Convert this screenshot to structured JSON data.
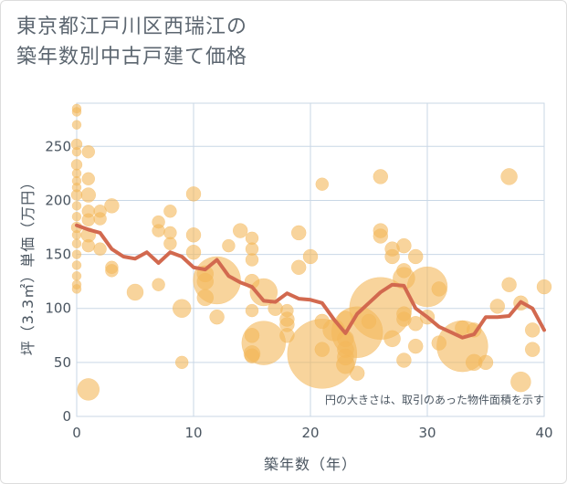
{
  "title_line1": "東京都江戸川区西瑞江の",
  "title_line2": "築年数別中古戸建て価格",
  "chart_data": {
    "type": "scatter",
    "xlabel": "築年数（年）",
    "ylabel": "坪（3.3㎡）単価（万円）",
    "xlim": [
      0,
      40
    ],
    "ylim": [
      0,
      290
    ],
    "xticks": [
      0,
      10,
      20,
      30,
      40
    ],
    "yticks": [
      0,
      50,
      100,
      150,
      200,
      250
    ],
    "grid": true,
    "note": "円の大きさは、取引のあった物件面積を示す",
    "bubble_color": "#f3b85a",
    "line_color": "#d2694f",
    "points": [
      {
        "x": 0,
        "y": 285,
        "s": 5
      },
      {
        "x": 0,
        "y": 282,
        "s": 5
      },
      {
        "x": 0,
        "y": 270,
        "s": 5
      },
      {
        "x": 0,
        "y": 252,
        "s": 6
      },
      {
        "x": 0,
        "y": 245,
        "s": 5
      },
      {
        "x": 0,
        "y": 233,
        "s": 6
      },
      {
        "x": 0,
        "y": 225,
        "s": 5
      },
      {
        "x": 0,
        "y": 218,
        "s": 5
      },
      {
        "x": 0,
        "y": 212,
        "s": 5
      },
      {
        "x": 0,
        "y": 205,
        "s": 6
      },
      {
        "x": 0,
        "y": 195,
        "s": 5
      },
      {
        "x": 0,
        "y": 185,
        "s": 5
      },
      {
        "x": 0,
        "y": 175,
        "s": 6
      },
      {
        "x": 0,
        "y": 168,
        "s": 5
      },
      {
        "x": 0,
        "y": 160,
        "s": 5
      },
      {
        "x": 0,
        "y": 150,
        "s": 5
      },
      {
        "x": 0,
        "y": 140,
        "s": 5
      },
      {
        "x": 0,
        "y": 130,
        "s": 5
      },
      {
        "x": 0,
        "y": 122,
        "s": 5
      },
      {
        "x": 0,
        "y": 118,
        "s": 5
      },
      {
        "x": 1,
        "y": 245,
        "s": 7
      },
      {
        "x": 1,
        "y": 220,
        "s": 7
      },
      {
        "x": 1,
        "y": 205,
        "s": 8
      },
      {
        "x": 1,
        "y": 190,
        "s": 7
      },
      {
        "x": 1,
        "y": 182,
        "s": 7
      },
      {
        "x": 1,
        "y": 168,
        "s": 8
      },
      {
        "x": 1,
        "y": 158,
        "s": 7
      },
      {
        "x": 1,
        "y": 25,
        "s": 12
      },
      {
        "x": 2,
        "y": 190,
        "s": 7
      },
      {
        "x": 2,
        "y": 183,
        "s": 7
      },
      {
        "x": 2,
        "y": 155,
        "s": 7
      },
      {
        "x": 3,
        "y": 195,
        "s": 8
      },
      {
        "x": 3,
        "y": 138,
        "s": 7
      },
      {
        "x": 3,
        "y": 135,
        "s": 7
      },
      {
        "x": 5,
        "y": 115,
        "s": 9
      },
      {
        "x": 7,
        "y": 180,
        "s": 7
      },
      {
        "x": 7,
        "y": 172,
        "s": 7
      },
      {
        "x": 7,
        "y": 122,
        "s": 7
      },
      {
        "x": 8,
        "y": 190,
        "s": 7
      },
      {
        "x": 8,
        "y": 170,
        "s": 7
      },
      {
        "x": 8,
        "y": 160,
        "s": 7
      },
      {
        "x": 9,
        "y": 100,
        "s": 10
      },
      {
        "x": 9,
        "y": 50,
        "s": 7
      },
      {
        "x": 10,
        "y": 206,
        "s": 8
      },
      {
        "x": 10,
        "y": 168,
        "s": 8
      },
      {
        "x": 10,
        "y": 152,
        "s": 8
      },
      {
        "x": 11,
        "y": 132,
        "s": 9
      },
      {
        "x": 11,
        "y": 125,
        "s": 9
      },
      {
        "x": 11,
        "y": 110,
        "s": 9
      },
      {
        "x": 12,
        "y": 126,
        "s": 26
      },
      {
        "x": 12,
        "y": 92,
        "s": 8
      },
      {
        "x": 13,
        "y": 158,
        "s": 7
      },
      {
        "x": 14,
        "y": 172,
        "s": 8
      },
      {
        "x": 15,
        "y": 165,
        "s": 7
      },
      {
        "x": 15,
        "y": 155,
        "s": 7
      },
      {
        "x": 15,
        "y": 145,
        "s": 7
      },
      {
        "x": 15,
        "y": 125,
        "s": 8
      },
      {
        "x": 15,
        "y": 98,
        "s": 7
      },
      {
        "x": 15,
        "y": 75,
        "s": 8
      },
      {
        "x": 15,
        "y": 58,
        "s": 9
      },
      {
        "x": 15,
        "y": 56,
        "s": 8
      },
      {
        "x": 16,
        "y": 115,
        "s": 15
      },
      {
        "x": 16,
        "y": 68,
        "s": 24
      },
      {
        "x": 17,
        "y": 100,
        "s": 8
      },
      {
        "x": 18,
        "y": 98,
        "s": 7
      },
      {
        "x": 18,
        "y": 90,
        "s": 8
      },
      {
        "x": 18,
        "y": 85,
        "s": 8
      },
      {
        "x": 18,
        "y": 75,
        "s": 8
      },
      {
        "x": 19,
        "y": 170,
        "s": 8
      },
      {
        "x": 19,
        "y": 138,
        "s": 8
      },
      {
        "x": 20,
        "y": 148,
        "s": 8
      },
      {
        "x": 21,
        "y": 215,
        "s": 7
      },
      {
        "x": 21,
        "y": 88,
        "s": 8
      },
      {
        "x": 21,
        "y": 62,
        "s": 8
      },
      {
        "x": 21,
        "y": 58,
        "s": 38
      },
      {
        "x": 22,
        "y": 80,
        "s": 12
      },
      {
        "x": 23,
        "y": 90,
        "s": 9
      },
      {
        "x": 23,
        "y": 72,
        "s": 9
      },
      {
        "x": 23,
        "y": 62,
        "s": 9
      },
      {
        "x": 23,
        "y": 55,
        "s": 9
      },
      {
        "x": 23,
        "y": 48,
        "s": 10
      },
      {
        "x": 24,
        "y": 78,
        "s": 28
      },
      {
        "x": 24,
        "y": 40,
        "s": 8
      },
      {
        "x": 25,
        "y": 88,
        "s": 8
      },
      {
        "x": 26,
        "y": 100,
        "s": 34
      },
      {
        "x": 26,
        "y": 222,
        "s": 8
      },
      {
        "x": 26,
        "y": 172,
        "s": 8
      },
      {
        "x": 26,
        "y": 167,
        "s": 8
      },
      {
        "x": 27,
        "y": 155,
        "s": 8
      },
      {
        "x": 27,
        "y": 148,
        "s": 8
      },
      {
        "x": 27,
        "y": 72,
        "s": 9
      },
      {
        "x": 28,
        "y": 158,
        "s": 8
      },
      {
        "x": 28,
        "y": 135,
        "s": 8
      },
      {
        "x": 28,
        "y": 128,
        "s": 12
      },
      {
        "x": 28,
        "y": 95,
        "s": 8
      },
      {
        "x": 28,
        "y": 90,
        "s": 8
      },
      {
        "x": 28,
        "y": 52,
        "s": 8
      },
      {
        "x": 29,
        "y": 148,
        "s": 8
      },
      {
        "x": 29,
        "y": 86,
        "s": 8
      },
      {
        "x": 29,
        "y": 65,
        "s": 8
      },
      {
        "x": 30,
        "y": 120,
        "s": 22
      },
      {
        "x": 30,
        "y": 92,
        "s": 8
      },
      {
        "x": 31,
        "y": 118,
        "s": 8
      },
      {
        "x": 31,
        "y": 68,
        "s": 8
      },
      {
        "x": 33,
        "y": 65,
        "s": 28
      },
      {
        "x": 33,
        "y": 82,
        "s": 8
      },
      {
        "x": 34,
        "y": 50,
        "s": 9
      },
      {
        "x": 34,
        "y": 80,
        "s": 8
      },
      {
        "x": 35,
        "y": 50,
        "s": 8
      },
      {
        "x": 36,
        "y": 102,
        "s": 8
      },
      {
        "x": 37,
        "y": 222,
        "s": 9
      },
      {
        "x": 37,
        "y": 122,
        "s": 8
      },
      {
        "x": 38,
        "y": 32,
        "s": 11
      },
      {
        "x": 38,
        "y": 105,
        "s": 8
      },
      {
        "x": 39,
        "y": 62,
        "s": 8
      },
      {
        "x": 39,
        "y": 80,
        "s": 8
      },
      {
        "x": 40,
        "y": 120,
        "s": 8
      }
    ],
    "trend": [
      [
        0,
        177
      ],
      [
        1,
        173
      ],
      [
        2,
        170
      ],
      [
        3,
        155
      ],
      [
        4,
        148
      ],
      [
        5,
        146
      ],
      [
        6,
        152
      ],
      [
        7,
        142
      ],
      [
        8,
        152
      ],
      [
        9,
        148
      ],
      [
        10,
        138
      ],
      [
        11,
        136
      ],
      [
        12,
        145
      ],
      [
        13,
        130
      ],
      [
        14,
        124
      ],
      [
        15,
        120
      ],
      [
        16,
        107
      ],
      [
        17,
        106
      ],
      [
        18,
        114
      ],
      [
        19,
        109
      ],
      [
        20,
        108
      ],
      [
        21,
        105
      ],
      [
        22,
        90
      ],
      [
        23,
        77
      ],
      [
        24,
        95
      ],
      [
        25,
        105
      ],
      [
        26,
        115
      ],
      [
        27,
        122
      ],
      [
        28,
        121
      ],
      [
        29,
        100
      ],
      [
        30,
        92
      ],
      [
        31,
        83
      ],
      [
        32,
        78
      ],
      [
        33,
        73
      ],
      [
        34,
        76
      ],
      [
        35,
        92
      ],
      [
        36,
        92
      ],
      [
        37,
        93
      ],
      [
        38,
        106
      ],
      [
        39,
        100
      ],
      [
        40,
        80
      ]
    ]
  }
}
